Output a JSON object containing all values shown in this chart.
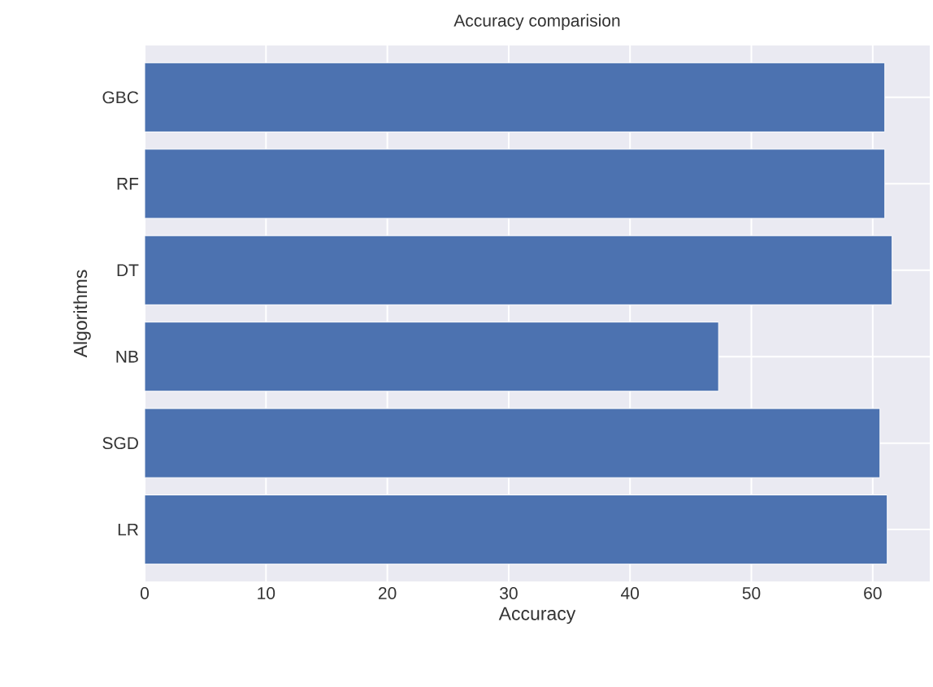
{
  "chart_data": {
    "type": "bar",
    "orientation": "horizontal",
    "title": "Accuracy comparision",
    "xlabel": "Accuracy",
    "ylabel": "Algorithms",
    "categories": [
      "GBC",
      "RF",
      "DT",
      "NB",
      "SGD",
      "LR"
    ],
    "values": [
      61.0,
      61.0,
      61.6,
      47.3,
      60.6,
      61.2
    ],
    "color": "#4c72b0",
    "xlim": [
      0,
      64.7
    ],
    "xticks": [
      0,
      10,
      20,
      30,
      40,
      50,
      60
    ],
    "grid": true
  }
}
